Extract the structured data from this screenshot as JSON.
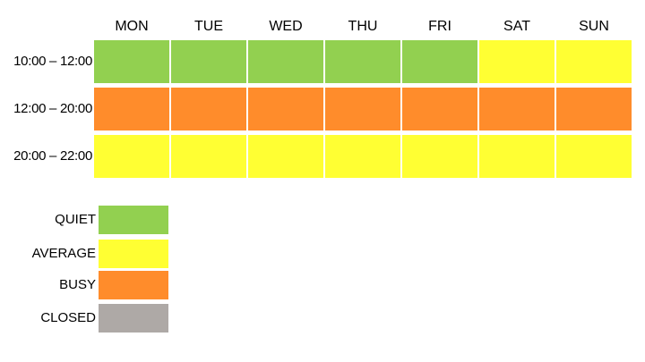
{
  "chart_data": {
    "type": "heatmap",
    "days": [
      "MON",
      "TUE",
      "WED",
      "THU",
      "FRI",
      "SAT",
      "SUN"
    ],
    "time_slots": [
      "10:00 – 12:00",
      "12:00 – 20:00",
      "20:00 – 22:00"
    ],
    "levels": [
      [
        "QUIET",
        "QUIET",
        "QUIET",
        "QUIET",
        "QUIET",
        "AVERAGE",
        "AVERAGE"
      ],
      [
        "BUSY",
        "BUSY",
        "BUSY",
        "BUSY",
        "BUSY",
        "BUSY",
        "BUSY"
      ],
      [
        "AVERAGE",
        "AVERAGE",
        "AVERAGE",
        "AVERAGE",
        "AVERAGE",
        "AVERAGE",
        "AVERAGE"
      ]
    ],
    "legend": [
      {
        "label": "QUIET",
        "color": "#92d050"
      },
      {
        "label": "AVERAGE",
        "color": "#ffff33"
      },
      {
        "label": "BUSY",
        "color": "#ff8c2b"
      },
      {
        "label": "CLOSED",
        "color": "#aea9a6"
      }
    ],
    "legend_position": "bottom-left"
  }
}
